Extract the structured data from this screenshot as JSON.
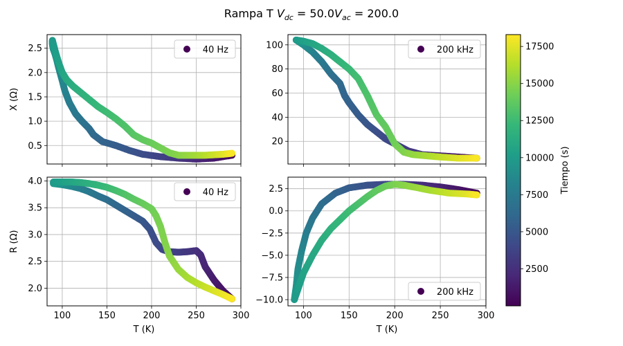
{
  "figure": {
    "title_prefix": "Rampa T ",
    "title_math": "V",
    "title_sub1": "dc",
    "title_eq1": " = 50.0",
    "title_math2": "V",
    "title_sub2": "ac",
    "title_eq2": " = 200.0"
  },
  "colorbar": {
    "label": "Tiempo (s)",
    "range": [
      0,
      18300
    ],
    "ticks": [
      2500,
      5000,
      7500,
      10000,
      12500,
      15000,
      17500
    ],
    "colormap": "viridis",
    "stops": [
      "#440154",
      "#482878",
      "#3e4989",
      "#31688e",
      "#26828e",
      "#1f9e89",
      "#35b779",
      "#6ece58",
      "#b5de2b",
      "#fde725"
    ]
  },
  "chart_data": [
    {
      "type": "scatter",
      "id": "x-40hz",
      "ylabel": "X (Ω)",
      "xlabel": "",
      "xlim": [
        83,
        300
      ],
      "ylim": [
        0.12,
        2.78
      ],
      "xticks": [
        100,
        150,
        200,
        250,
        300
      ],
      "yticks": [
        0.5,
        1.0,
        1.5,
        2.0,
        2.5
      ],
      "ytick_labels": [
        "0.5",
        "1.0",
        "1.5",
        "2.0",
        "2.5"
      ],
      "legend": {
        "label": "40 Hz",
        "position": "top-right"
      },
      "cooling": {
        "x": [
          290,
          270,
          250,
          230,
          210,
          190,
          175,
          160,
          145,
          135,
          130,
          122,
          115,
          108,
          103,
          99,
          96,
          94,
          92,
          90,
          89,
          89
        ],
        "y": [
          0.3,
          0.24,
          0.22,
          0.24,
          0.27,
          0.32,
          0.4,
          0.5,
          0.58,
          0.72,
          0.85,
          1.0,
          1.15,
          1.38,
          1.62,
          1.9,
          2.1,
          2.25,
          2.38,
          2.48,
          2.58,
          2.66
        ],
        "t": [
          300,
          1200,
          2000,
          2800,
          3500,
          4200,
          4800,
          5300,
          5800,
          6200,
          6500,
          6900,
          7300,
          7700,
          8100,
          8500,
          8800,
          9100,
          9300,
          9500,
          9700,
          9900
        ]
      },
      "heating": {
        "x": [
          89,
          92,
          96,
          100,
          105,
          112,
          120,
          130,
          140,
          150,
          160,
          170,
          180,
          190,
          200,
          210,
          220,
          230,
          240,
          250,
          260,
          270,
          280,
          290
        ],
        "y": [
          2.66,
          2.45,
          2.2,
          2.0,
          1.85,
          1.72,
          1.6,
          1.45,
          1.3,
          1.18,
          1.05,
          0.9,
          0.72,
          0.62,
          0.55,
          0.45,
          0.35,
          0.3,
          0.3,
          0.3,
          0.3,
          0.31,
          0.32,
          0.34
        ],
        "t": [
          9900,
          10100,
          10400,
          10700,
          11000,
          11300,
          11600,
          11900,
          12200,
          12500,
          12800,
          13100,
          13400,
          13700,
          14000,
          14300,
          14600,
          14900,
          15300,
          15700,
          16200,
          16800,
          17400,
          18200
        ]
      }
    },
    {
      "type": "scatter",
      "id": "x-200khz",
      "ylabel": "",
      "xlabel": "",
      "xlim": [
        83,
        300
      ],
      "ylim": [
        1.2,
        108.5
      ],
      "xticks": [
        100,
        150,
        200,
        250,
        300
      ],
      "yticks": [
        20,
        40,
        60,
        80,
        100
      ],
      "ytick_labels": [
        "20",
        "40",
        "60",
        "80",
        "100"
      ],
      "legend": {
        "label": "200 kHz",
        "position": "top-right"
      },
      "cooling": {
        "x": [
          290,
          270,
          250,
          230,
          215,
          200,
          190,
          180,
          170,
          160,
          150,
          145,
          140,
          130,
          120,
          110,
          100,
          92
        ],
        "y": [
          6,
          7,
          8,
          9,
          12,
          18,
          22,
          28,
          34,
          42,
          52,
          58,
          68,
          76,
          86,
          94,
          100,
          104
        ],
        "t": [
          300,
          1000,
          1800,
          2600,
          3100,
          3600,
          4000,
          4400,
          4800,
          5200,
          5600,
          5900,
          6200,
          6700,
          7300,
          8000,
          8900,
          9900
        ]
      },
      "heating": {
        "x": [
          92,
          100,
          110,
          120,
          130,
          140,
          150,
          160,
          170,
          175,
          180,
          190,
          200,
          210,
          220,
          235,
          250,
          270,
          290
        ],
        "y": [
          104,
          103,
          101,
          97,
          92,
          86,
          80,
          72,
          58,
          50,
          42,
          32,
          18,
          11,
          9,
          8,
          7,
          6,
          6
        ],
        "t": [
          9900,
          10300,
          10700,
          11100,
          11500,
          11900,
          12300,
          12700,
          13100,
          13300,
          13500,
          13800,
          14200,
          14700,
          15200,
          15800,
          16500,
          17400,
          18200
        ]
      }
    },
    {
      "type": "scatter",
      "id": "r-40hz",
      "ylabel": "R (Ω)",
      "xlabel": "T (K)",
      "xlim": [
        83,
        300
      ],
      "ylim": [
        1.67,
        4.07
      ],
      "xticks": [
        100,
        150,
        200,
        250,
        300
      ],
      "yticks": [
        2.0,
        2.5,
        3.0,
        3.5,
        4.0
      ],
      "ytick_labels": [
        "2.0",
        "2.5",
        "3.0",
        "3.5",
        "4.0"
      ],
      "legend": {
        "label": "40 Hz",
        "position": "top-right"
      },
      "cooling": {
        "x": [
          290,
          280,
          270,
          260,
          255,
          250,
          240,
          230,
          220,
          212,
          205,
          198,
          190,
          180,
          170,
          160,
          150,
          140,
          130,
          120,
          110,
          100,
          90
        ],
        "y": [
          1.8,
          1.95,
          2.15,
          2.4,
          2.62,
          2.7,
          2.68,
          2.67,
          2.68,
          2.72,
          2.85,
          3.1,
          3.25,
          3.35,
          3.45,
          3.55,
          3.65,
          3.72,
          3.8,
          3.86,
          3.9,
          3.93,
          3.95
        ],
        "t": [
          300,
          800,
          1300,
          1800,
          2100,
          2400,
          2800,
          3200,
          3600,
          3900,
          4200,
          4500,
          4900,
          5300,
          5700,
          6100,
          6500,
          6900,
          7300,
          7800,
          8400,
          9100,
          9900
        ]
      },
      "heating": {
        "x": [
          90,
          100,
          110,
          120,
          130,
          140,
          150,
          160,
          170,
          180,
          190,
          200,
          205,
          210,
          215,
          220,
          230,
          240,
          250,
          260,
          270,
          280,
          290
        ],
        "y": [
          3.98,
          3.98,
          3.98,
          3.97,
          3.95,
          3.92,
          3.88,
          3.82,
          3.75,
          3.66,
          3.58,
          3.48,
          3.35,
          3.15,
          2.85,
          2.6,
          2.35,
          2.2,
          2.1,
          2.02,
          1.95,
          1.88,
          1.8
        ],
        "t": [
          9900,
          10300,
          10700,
          11100,
          11500,
          11900,
          12300,
          12700,
          13100,
          13500,
          13900,
          14200,
          14400,
          14600,
          14800,
          15000,
          15400,
          15800,
          16200,
          16700,
          17200,
          17700,
          18200
        ]
      }
    },
    {
      "type": "scatter",
      "id": "r-200khz",
      "ylabel": "",
      "xlabel": "T (K)",
      "xlim": [
        83,
        300
      ],
      "ylim": [
        -10.7,
        3.8
      ],
      "xticks": [
        100,
        150,
        200,
        250,
        300
      ],
      "yticks": [
        -10.0,
        -7.5,
        -5.0,
        -2.5,
        0.0,
        2.5
      ],
      "ytick_labels": [
        "−10.0",
        "−7.5",
        "−5.0",
        "−2.5",
        "0.0",
        "2.5"
      ],
      "legend": {
        "label": "200 kHz",
        "position": "bottom-right"
      },
      "cooling": {
        "x": [
          290,
          270,
          250,
          230,
          210,
          190,
          170,
          150,
          135,
          120,
          110,
          103,
          98,
          94,
          92,
          90
        ],
        "y": [
          2.0,
          2.4,
          2.7,
          2.9,
          3.0,
          3.0,
          2.9,
          2.6,
          2.0,
          0.8,
          -0.8,
          -2.5,
          -4.5,
          -6.5,
          -8.5,
          -10.0
        ],
        "t": [
          300,
          1000,
          1700,
          2400,
          3100,
          3800,
          4500,
          5200,
          5800,
          6500,
          7100,
          7700,
          8300,
          8900,
          9400,
          9900
        ]
      },
      "heating": {
        "x": [
          90,
          95,
          100,
          110,
          120,
          130,
          140,
          150,
          160,
          170,
          180,
          190,
          200,
          210,
          220,
          240,
          260,
          280,
          290
        ],
        "y": [
          -10.0,
          -8.5,
          -7.0,
          -5.0,
          -3.3,
          -2.0,
          -1.0,
          0.0,
          0.8,
          1.6,
          2.3,
          2.8,
          3.0,
          2.9,
          2.7,
          2.3,
          2.0,
          1.9,
          1.8
        ],
        "t": [
          9900,
          10200,
          10500,
          10900,
          11300,
          11700,
          12100,
          12500,
          12900,
          13300,
          13700,
          14100,
          14500,
          14900,
          15300,
          15900,
          16700,
          17500,
          18200
        ]
      }
    }
  ]
}
